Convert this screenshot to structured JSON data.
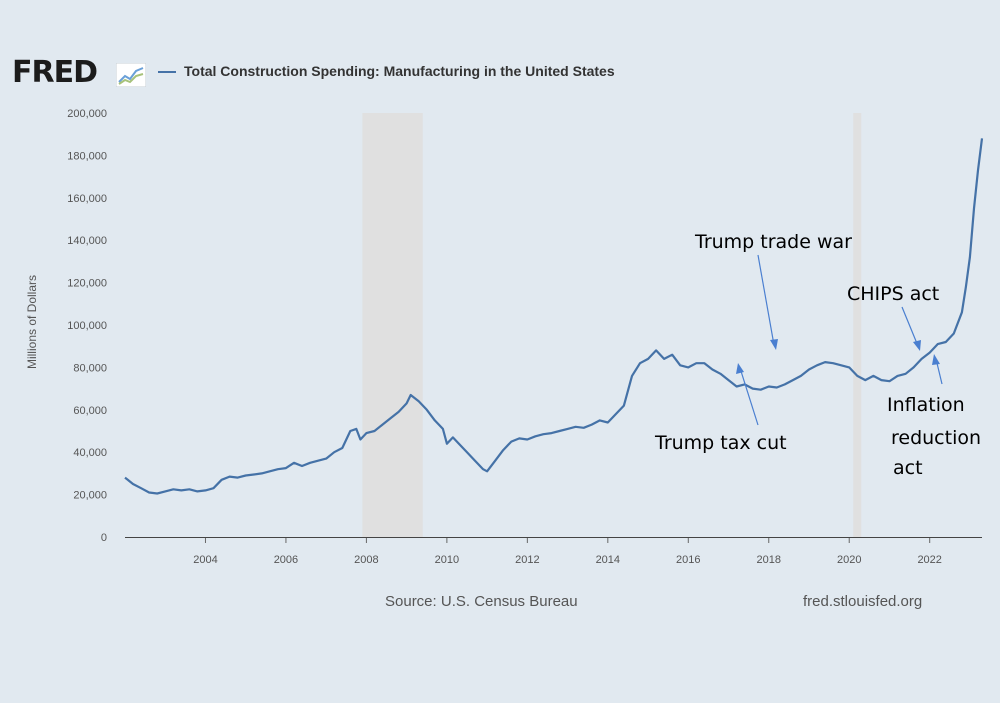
{
  "header": {
    "logo_text": "FRED",
    "series_title": "Total Construction Spending: Manufacturing in the United States"
  },
  "footer": {
    "source": "Source: U.S. Census Bureau",
    "url": "fred.stlouisfed.org"
  },
  "colors": {
    "line": "#4572a7",
    "recession": "#e0e0e0",
    "annotation_arrow": "#4a7fd0"
  },
  "chart_data": {
    "type": "line",
    "ylabel": "Millions of Dollars",
    "xlim": [
      2002.0,
      2023.3
    ],
    "ylim": [
      0,
      200000
    ],
    "grid": false,
    "x_ticks": [
      2004,
      2006,
      2008,
      2010,
      2012,
      2014,
      2016,
      2018,
      2020,
      2022
    ],
    "y_ticks": [
      0,
      20000,
      40000,
      60000,
      80000,
      100000,
      120000,
      140000,
      160000,
      180000,
      200000
    ],
    "y_tick_labels": [
      "0",
      "20,000",
      "40,000",
      "60,000",
      "80,000",
      "100,000",
      "120,000",
      "140,000",
      "160,000",
      "180,000",
      "200,000"
    ],
    "recessions": [
      [
        2007.9,
        2009.4
      ],
      [
        2020.1,
        2020.3
      ]
    ],
    "series": [
      {
        "x": [
          2002.0,
          2002.2,
          2002.4,
          2002.6,
          2002.8,
          2003.0,
          2003.2,
          2003.4,
          2003.6,
          2003.8,
          2004.0,
          2004.2,
          2004.4,
          2004.6,
          2004.8,
          2005.0,
          2005.2,
          2005.4,
          2005.6,
          2005.8,
          2006.0,
          2006.2,
          2006.4,
          2006.6,
          2006.8,
          2007.0,
          2007.2,
          2007.4,
          2007.6,
          2007.75,
          2007.85,
          2008.0,
          2008.2,
          2008.4,
          2008.6,
          2008.8,
          2009.0,
          2009.1,
          2009.3,
          2009.5,
          2009.7,
          2009.9,
          2010.0,
          2010.15,
          2010.3,
          2010.5,
          2010.7,
          2010.9,
          2011.0,
          2011.2,
          2011.4,
          2011.6,
          2011.8,
          2012.0,
          2012.2,
          2012.4,
          2012.6,
          2012.8,
          2013.0,
          2013.2,
          2013.4,
          2013.6,
          2013.8,
          2014.0,
          2014.2,
          2014.4,
          2014.6,
          2014.8,
          2015.0,
          2015.2,
          2015.4,
          2015.6,
          2015.8,
          2016.0,
          2016.2,
          2016.4,
          2016.6,
          2016.8,
          2017.0,
          2017.2,
          2017.4,
          2017.6,
          2017.8,
          2018.0,
          2018.2,
          2018.4,
          2018.6,
          2018.8,
          2019.0,
          2019.2,
          2019.4,
          2019.6,
          2019.8,
          2020.0,
          2020.2,
          2020.4,
          2020.6,
          2020.8,
          2021.0,
          2021.2,
          2021.4,
          2021.6,
          2021.8,
          2022.0,
          2022.2,
          2022.4,
          2022.6,
          2022.8,
          2022.9,
          2023.0,
          2023.1,
          2023.2,
          2023.3
        ],
        "y": [
          28000,
          25000,
          23000,
          21000,
          20500,
          21500,
          22500,
          22000,
          22500,
          21500,
          22000,
          23000,
          27000,
          28500,
          28000,
          29000,
          29500,
          30000,
          31000,
          32000,
          32500,
          35000,
          33500,
          35000,
          36000,
          37000,
          40000,
          42000,
          50000,
          51000,
          46000,
          49000,
          50000,
          53000,
          56000,
          59000,
          63000,
          67000,
          64000,
          60000,
          55000,
          51000,
          44000,
          47000,
          44000,
          40000,
          36000,
          32000,
          31000,
          36000,
          41000,
          45000,
          46500,
          46000,
          47500,
          48500,
          49000,
          50000,
          51000,
          52000,
          51500,
          53000,
          55000,
          54000,
          58000,
          62000,
          76000,
          82000,
          84000,
          88000,
          84000,
          86000,
          81000,
          80000,
          82000,
          82000,
          79000,
          77000,
          74000,
          71000,
          72000,
          70000,
          69500,
          71000,
          70500,
          72000,
          74000,
          76000,
          79000,
          81000,
          82500,
          82000,
          81000,
          80000,
          76000,
          74000,
          76000,
          74000,
          73500,
          76000,
          77000,
          80000,
          84000,
          87000,
          91000,
          92000,
          96000,
          106000,
          118000,
          132000,
          155000,
          173000,
          188000
        ]
      }
    ],
    "annotations": [
      {
        "text": "Trump trade war"
      },
      {
        "text": "CHIPS act"
      },
      {
        "text": "Trump tax cut"
      },
      {
        "text": "Inflation"
      },
      {
        "text": "reduction"
      },
      {
        "text": "act"
      }
    ]
  }
}
